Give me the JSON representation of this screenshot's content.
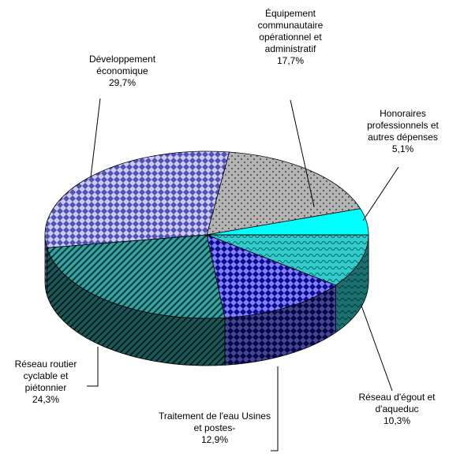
{
  "chart_data": {
    "type": "pie",
    "categories": [
      "Équipement communautaire opérationnel et administratif",
      "Honoraires professionnels et autres dépenses",
      "Réseau d'égout et d'aqueduc",
      "Traitement de l'eau Usines et postes-",
      "Réseau routier cyclable et piétonnier",
      "Développement économique"
    ],
    "values": [
      17.7,
      5.1,
      10.3,
      12.9,
      24.3,
      29.7
    ],
    "value_labels": [
      "17,7%",
      "5,1%",
      "10,3%",
      "12,9%",
      "24,3%",
      "29,7%"
    ],
    "colors": [
      "#b4b4b4",
      "#00ffff",
      "#33cccc",
      "#8080ff",
      "#33a3a3",
      "#ccccff"
    ]
  }
}
